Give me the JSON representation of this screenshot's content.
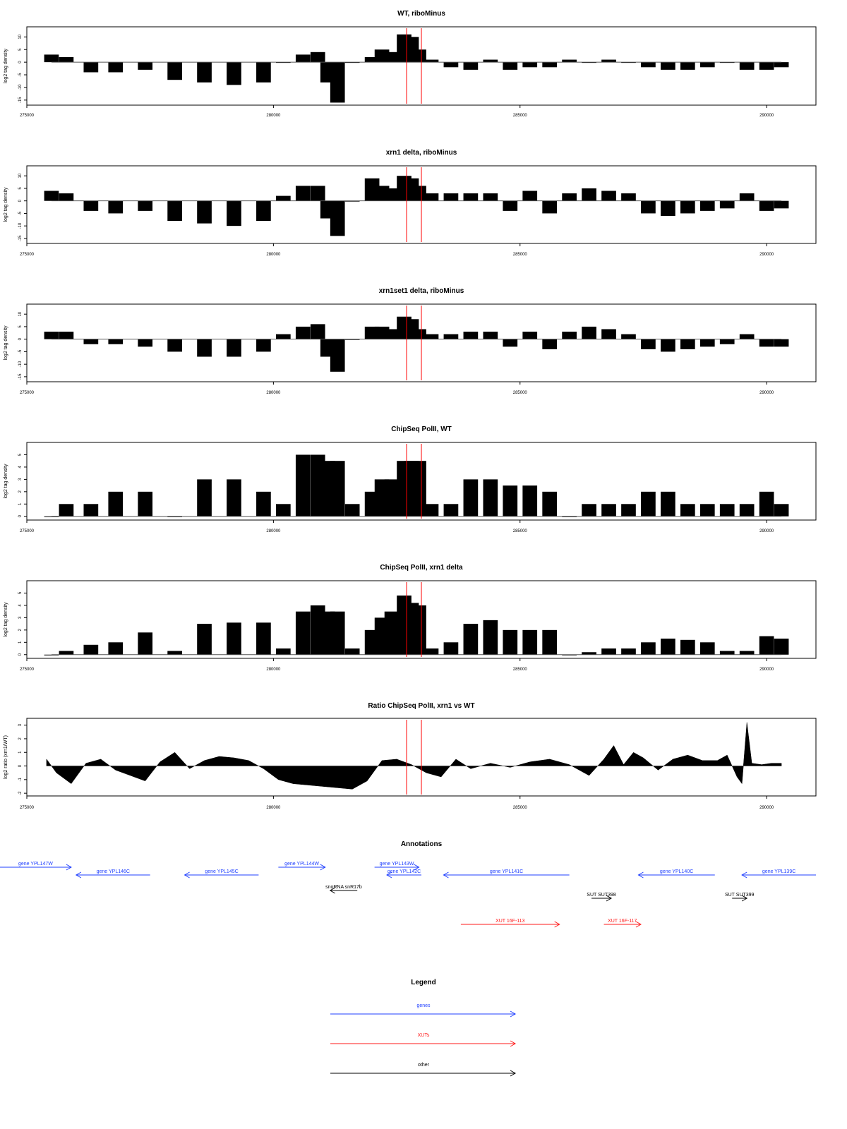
{
  "colors": {
    "genes": "#1f3fff",
    "XUTs": "#ff1a1a",
    "other": "#000000",
    "marker": "#ff0000",
    "bar": "#000000",
    "frame": "#000000"
  },
  "chart_data": [
    {
      "title": "WT, riboMinus",
      "type": "bar",
      "ylabel": "log2 tag density",
      "ylim": [
        -17,
        14
      ],
      "yticks": [
        -15,
        -10,
        -5,
        0,
        5,
        10
      ],
      "xlim": [
        275000,
        291000
      ],
      "xticks": [
        275000,
        280000,
        285000,
        290000
      ],
      "markers": [
        282700,
        283000
      ],
      "x": [
        275500,
        275800,
        276300,
        276800,
        277400,
        278000,
        278600,
        279200,
        279800,
        280200,
        280600,
        280900,
        281100,
        281300,
        281600,
        282000,
        282200,
        282400,
        282650,
        282800,
        282950,
        283200,
        283600,
        284000,
        284400,
        284800,
        285200,
        285600,
        286000,
        286400,
        286800,
        287200,
        287600,
        288000,
        288400,
        288800,
        289200,
        289600,
        290000,
        290300
      ],
      "values": [
        3,
        2,
        -4,
        -4,
        -3,
        -7,
        -8,
        -9,
        -8,
        0,
        3,
        4,
        -8,
        -16,
        0,
        2,
        5,
        4,
        11,
        10,
        5,
        1,
        -2,
        -3,
        1,
        -3,
        -2,
        -2,
        1,
        0,
        1,
        0,
        -2,
        -3,
        -3,
        -2,
        0,
        -3,
        -3,
        -2
      ]
    },
    {
      "title": "xrn1 delta, riboMinus",
      "type": "bar",
      "ylabel": "log2 tag density",
      "ylim": [
        -17,
        14
      ],
      "yticks": [
        -15,
        -10,
        -5,
        0,
        5,
        10
      ],
      "xlim": [
        275000,
        291000
      ],
      "xticks": [
        275000,
        280000,
        285000,
        290000
      ],
      "markers": [
        282700,
        283000
      ],
      "x": [
        275500,
        275800,
        276300,
        276800,
        277400,
        278000,
        278600,
        279200,
        279800,
        280200,
        280600,
        280900,
        281100,
        281300,
        281600,
        282000,
        282200,
        282400,
        282650,
        282800,
        282950,
        283200,
        283600,
        284000,
        284400,
        284800,
        285200,
        285600,
        286000,
        286400,
        286800,
        287200,
        287600,
        288000,
        288400,
        288800,
        289200,
        289600,
        290000,
        290300
      ],
      "values": [
        4,
        3,
        -4,
        -5,
        -4,
        -8,
        -9,
        -10,
        -8,
        2,
        6,
        6,
        -7,
        -14,
        0,
        9,
        6,
        5,
        10,
        9,
        6,
        3,
        3,
        3,
        3,
        -4,
        4,
        -5,
        3,
        5,
        4,
        3,
        -5,
        -6,
        -5,
        -4,
        -3,
        3,
        -4,
        -3
      ]
    },
    {
      "title": "xrn1set1 delta, riboMinus",
      "type": "bar",
      "ylabel": "log2 tag density",
      "ylim": [
        -17,
        14
      ],
      "yticks": [
        -15,
        -10,
        -5,
        0,
        5,
        10
      ],
      "xlim": [
        275000,
        291000
      ],
      "xticks": [
        275000,
        280000,
        285000,
        290000
      ],
      "markers": [
        282700,
        283000
      ],
      "x": [
        275500,
        275800,
        276300,
        276800,
        277400,
        278000,
        278600,
        279200,
        279800,
        280200,
        280600,
        280900,
        281100,
        281300,
        281600,
        282000,
        282200,
        282400,
        282650,
        282800,
        282950,
        283200,
        283600,
        284000,
        284400,
        284800,
        285200,
        285600,
        286000,
        286400,
        286800,
        287200,
        287600,
        288000,
        288400,
        288800,
        289200,
        289600,
        290000,
        290300
      ],
      "values": [
        3,
        3,
        -2,
        -2,
        -3,
        -5,
        -7,
        -7,
        -5,
        2,
        5,
        6,
        -7,
        -13,
        0,
        5,
        5,
        4,
        9,
        8,
        4,
        2,
        2,
        3,
        3,
        -3,
        3,
        -4,
        3,
        5,
        4,
        2,
        -4,
        -5,
        -4,
        -3,
        -2,
        2,
        -3,
        -3
      ]
    },
    {
      "title": "ChipSeq PolII, WT",
      "type": "bar",
      "ylabel": "log2 tag density",
      "ylim": [
        -0.3,
        6
      ],
      "yticks": [
        0,
        1,
        2,
        3,
        4,
        5
      ],
      "xlim": [
        275000,
        291000
      ],
      "xticks": [
        275000,
        280000,
        285000,
        290000
      ],
      "markers": [
        282700,
        283000
      ],
      "x": [
        275500,
        275800,
        276300,
        276800,
        277400,
        278000,
        278600,
        279200,
        279800,
        280200,
        280600,
        280900,
        281100,
        281300,
        281600,
        282000,
        282200,
        282400,
        282650,
        282800,
        282950,
        283200,
        283600,
        284000,
        284400,
        284800,
        285200,
        285600,
        286000,
        286400,
        286800,
        287200,
        287600,
        288000,
        288400,
        288800,
        289200,
        289600,
        290000,
        290300
      ],
      "values": [
        0,
        1,
        1,
        2,
        2,
        0,
        3,
        3,
        2,
        1,
        5,
        5,
        4.5,
        4.5,
        1,
        2,
        3,
        3,
        4.5,
        4.5,
        4.5,
        1,
        1,
        3,
        3,
        2.5,
        2.5,
        2,
        0,
        1,
        1,
        1,
        2,
        2,
        1,
        1,
        1,
        1,
        2,
        1
      ]
    },
    {
      "title": "ChipSeq PolII, xrn1 delta",
      "type": "bar",
      "ylabel": "log2 tag density",
      "ylim": [
        -0.3,
        6
      ],
      "yticks": [
        0,
        1,
        2,
        3,
        4,
        5
      ],
      "xlim": [
        275000,
        291000
      ],
      "xticks": [
        275000,
        280000,
        285000,
        290000
      ],
      "markers": [
        282700,
        283000
      ],
      "x": [
        275500,
        275800,
        276300,
        276800,
        277400,
        278000,
        278600,
        279200,
        279800,
        280200,
        280600,
        280900,
        281100,
        281300,
        281600,
        282000,
        282200,
        282400,
        282650,
        282800,
        282950,
        283200,
        283600,
        284000,
        284400,
        284800,
        285200,
        285600,
        286000,
        286400,
        286800,
        287200,
        287600,
        288000,
        288400,
        288800,
        289200,
        289600,
        290000,
        290300
      ],
      "values": [
        0,
        0.3,
        0.8,
        1,
        1.8,
        0.3,
        2.5,
        2.6,
        2.6,
        0.5,
        3.5,
        4,
        3.5,
        3.5,
        0.5,
        2,
        3,
        3.5,
        4.8,
        4.2,
        4,
        0.5,
        1,
        2.5,
        2.8,
        2,
        2,
        2,
        0,
        0.2,
        0.5,
        0.5,
        1,
        1.3,
        1.2,
        1,
        0.3,
        0.3,
        1.5,
        1.3
      ]
    },
    {
      "title": "Ratio ChipSeq PolII, xrn1 vs WT",
      "type": "area",
      "ylabel": "log2 ratio (xrn1/WT)",
      "ylim": [
        -2.2,
        3.5
      ],
      "yticks": [
        -2,
        -1,
        0,
        1,
        2,
        3
      ],
      "xlim": [
        275000,
        291000
      ],
      "xticks": [
        275000,
        280000,
        285000,
        290000
      ],
      "markers": [
        282700,
        283000
      ],
      "x": [
        275400,
        275600,
        275900,
        276200,
        276500,
        276800,
        277100,
        277400,
        277700,
        278000,
        278300,
        278600,
        278900,
        279200,
        279500,
        279800,
        280100,
        280400,
        280700,
        281000,
        281300,
        281600,
        281900,
        282200,
        282500,
        282800,
        283100,
        283400,
        283700,
        284000,
        284400,
        284800,
        285200,
        285600,
        286000,
        286400,
        286700,
        286900,
        287100,
        287300,
        287500,
        287800,
        288100,
        288400,
        288700,
        289000,
        289200,
        289400,
        289500,
        289600,
        289700,
        289900,
        290100,
        290300
      ],
      "values": [
        0.5,
        -0.5,
        -1.3,
        0.2,
        0.5,
        -0.3,
        -0.7,
        -1.1,
        0.3,
        1,
        -0.2,
        0.4,
        0.7,
        0.6,
        0.4,
        -0.2,
        -1,
        -1.3,
        -1.4,
        -1.5,
        -1.6,
        -1.7,
        -1.1,
        0.4,
        0.5,
        0.1,
        -0.5,
        -0.8,
        0.5,
        -0.2,
        0.2,
        -0.1,
        0.3,
        0.5,
        0.1,
        -0.7,
        0.5,
        1.5,
        0.1,
        1,
        0.6,
        -0.3,
        0.5,
        0.8,
        0.4,
        0.4,
        0.8,
        -0.8,
        -1.3,
        3.2,
        0.2,
        0.1,
        0.2,
        0.2
      ]
    }
  ],
  "annotations": {
    "title": "Annotations",
    "xlim": [
      275000,
      291000
    ],
    "items": [
      {
        "label": "gene YPL147W",
        "kind": "genes",
        "start": 274400,
        "end": 275900,
        "dir": "right",
        "row": 0
      },
      {
        "label": "gene YPL146C",
        "kind": "genes",
        "start": 276000,
        "end": 277500,
        "dir": "left",
        "row": 1
      },
      {
        "label": "gene YPL145C",
        "kind": "genes",
        "start": 278200,
        "end": 279700,
        "dir": "left",
        "row": 1
      },
      {
        "label": "gene YPL144W",
        "kind": "genes",
        "start": 280100,
        "end": 281050,
        "dir": "right",
        "row": 0
      },
      {
        "label": "gene YPL143W",
        "kind": "genes",
        "start": 282050,
        "end": 282950,
        "dir": "right",
        "row": 0
      },
      {
        "label": "gene YPL142C",
        "kind": "genes",
        "start": 282300,
        "end": 283000,
        "dir": "left",
        "row": 1
      },
      {
        "label": "gene YPL141C",
        "kind": "genes",
        "start": 283450,
        "end": 286000,
        "dir": "left",
        "row": 1
      },
      {
        "label": "gene YPL140C",
        "kind": "genes",
        "start": 287400,
        "end": 288950,
        "dir": "left",
        "row": 1
      },
      {
        "label": "gene YPL139C",
        "kind": "genes",
        "start": 289500,
        "end": 291000,
        "dir": "left",
        "row": 1
      },
      {
        "label": "snoRNA snR17b",
        "kind": "other",
        "start": 281150,
        "end": 281700,
        "dir": "left",
        "row": 2
      },
      {
        "label": "SUT SUT398",
        "kind": "other",
        "start": 286450,
        "end": 286850,
        "dir": "right",
        "row": 3
      },
      {
        "label": "SUT SUT399",
        "kind": "other",
        "start": 289300,
        "end": 289600,
        "dir": "right",
        "row": 3
      },
      {
        "label": "XUT 16F-113",
        "kind": "XUTs",
        "start": 283800,
        "end": 285800,
        "dir": "right",
        "row": 5
      },
      {
        "label": "XUT 16F-117",
        "kind": "XUTs",
        "start": 286700,
        "end": 287450,
        "dir": "right",
        "row": 5
      }
    ]
  },
  "legend": {
    "title": "Legend",
    "entries": [
      {
        "label": "genes",
        "kind": "genes"
      },
      {
        "label": "XUTs",
        "kind": "XUTs"
      },
      {
        "label": "other",
        "kind": "other"
      }
    ]
  }
}
